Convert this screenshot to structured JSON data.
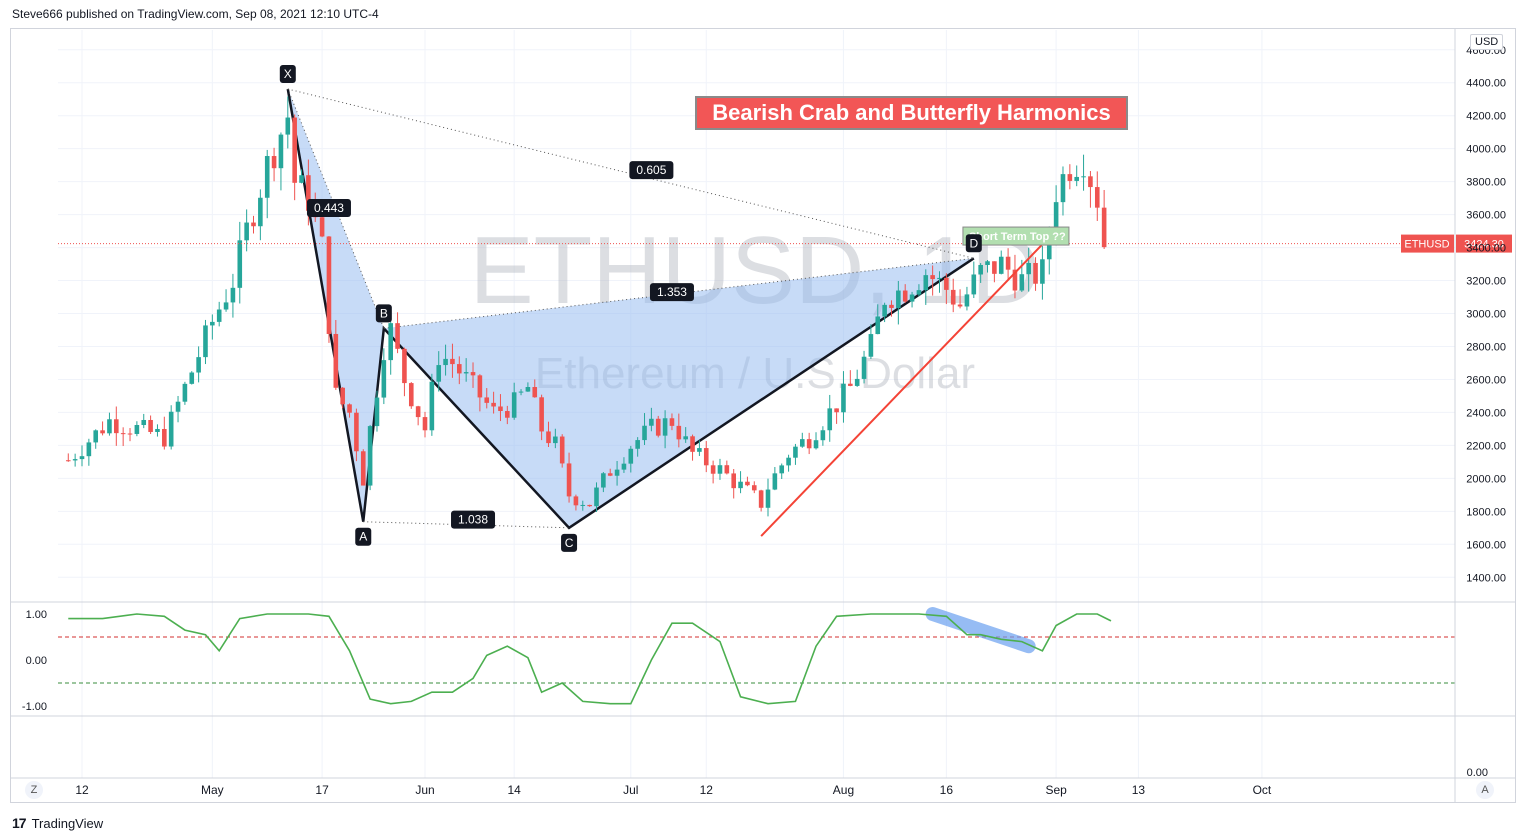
{
  "header": {
    "text": "Steve666 published on TradingView.com, Sep 08, 2021 12:10 UTC-4"
  },
  "footer": {
    "logo": "17",
    "brand": "TradingView"
  },
  "annotation_title": "Bearish Crab and Butterfly Harmonics",
  "currency_badge": "USD",
  "buttons": {
    "left": "Z",
    "right": "A"
  },
  "watermark": {
    "symbol": "ETHUSD, 1D",
    "name": "Ethereum / U.S. Dollar"
  },
  "colors": {
    "up": "#26a69a",
    "down": "#ef5350",
    "pattern_fill": "#90b8f0",
    "oscillator": "#4caf50",
    "trend": "#f44336",
    "callout": "#b2dfb0"
  },
  "chart_data": {
    "type": "candlestick",
    "symbol": "ETHUSD",
    "interval": "1D",
    "y_price_ticks": [
      1400,
      1600,
      1800,
      2000,
      2200,
      2400,
      2600,
      2800,
      3000,
      3200,
      3400,
      3600,
      3800,
      4000,
      4200,
      4400,
      4600
    ],
    "ylim": [
      1250,
      4720
    ],
    "x_ticks": [
      {
        "label": "12",
        "date": "2021-04-12"
      },
      {
        "label": "May",
        "date": "2021-05-01"
      },
      {
        "label": "17",
        "date": "2021-05-17"
      },
      {
        "label": "Jun",
        "date": "2021-06-01"
      },
      {
        "label": "14",
        "date": "2021-06-14"
      },
      {
        "label": "Jul",
        "date": "2021-07-01"
      },
      {
        "label": "12",
        "date": "2021-07-12"
      },
      {
        "label": "Aug",
        "date": "2021-08-01"
      },
      {
        "label": "16",
        "date": "2021-08-16"
      },
      {
        "label": "Sep",
        "date": "2021-09-01"
      },
      {
        "label": "13",
        "date": "2021-09-13"
      },
      {
        "label": "Oct",
        "date": "2021-10-01"
      }
    ],
    "last_price": {
      "label": "ETHUSD",
      "value": "3424.30"
    },
    "price_path": [
      [
        "2021-04-10",
        2110
      ],
      [
        "2021-04-16",
        2350
      ],
      [
        "2021-04-20",
        2300
      ],
      [
        "2021-04-24",
        2250
      ],
      [
        "2021-04-28",
        2650
      ],
      [
        "2021-05-01",
        2950
      ],
      [
        "2021-05-04",
        3200
      ],
      [
        "2021-05-06",
        3500
      ],
      [
        "2021-05-09",
        3900
      ],
      [
        "2021-05-12",
        4200
      ],
      [
        "2021-05-13",
        3800
      ],
      [
        "2021-05-15",
        3700
      ],
      [
        "2021-05-17",
        3400
      ],
      [
        "2021-05-19",
        2500
      ],
      [
        "2021-05-21",
        2400
      ],
      [
        "2021-05-23",
        2000
      ],
      [
        "2021-05-24",
        2300
      ],
      [
        "2021-05-26",
        2800
      ],
      [
        "2021-05-27",
        2900
      ],
      [
        "2021-05-29",
        2600
      ],
      [
        "2021-06-01",
        2300
      ],
      [
        "2021-06-03",
        2750
      ],
      [
        "2021-06-05",
        2700
      ],
      [
        "2021-06-08",
        2550
      ],
      [
        "2021-06-11",
        2400
      ],
      [
        "2021-06-14",
        2450
      ],
      [
        "2021-06-16",
        2550
      ],
      [
        "2021-06-18",
        2300
      ],
      [
        "2021-06-20",
        2200
      ],
      [
        "2021-06-22",
        1900
      ],
      [
        "2021-06-25",
        1850
      ],
      [
        "2021-06-28",
        2050
      ],
      [
        "2021-07-01",
        2200
      ],
      [
        "2021-07-04",
        2300
      ],
      [
        "2021-07-07",
        2350
      ],
      [
        "2021-07-10",
        2150
      ],
      [
        "2021-07-14",
        2050
      ],
      [
        "2021-07-17",
        1950
      ],
      [
        "2021-07-20",
        1850
      ],
      [
        "2021-07-21",
        1950
      ],
      [
        "2021-07-24",
        2150
      ],
      [
        "2021-07-27",
        2250
      ],
      [
        "2021-07-30",
        2400
      ],
      [
        "2021-08-02",
        2550
      ],
      [
        "2021-08-05",
        2800
      ],
      [
        "2021-08-07",
        3100
      ],
      [
        "2021-08-10",
        3150
      ],
      [
        "2021-08-13",
        3250
      ],
      [
        "2021-08-16",
        3150
      ],
      [
        "2021-08-18",
        3050
      ],
      [
        "2021-08-21",
        3250
      ],
      [
        "2021-08-24",
        3300
      ],
      [
        "2021-08-27",
        3200
      ],
      [
        "2021-08-30",
        3250
      ],
      [
        "2021-09-01",
        3750
      ],
      [
        "2021-09-03",
        3900
      ],
      [
        "2021-09-05",
        3950
      ],
      [
        "2021-09-07",
        3700
      ],
      [
        "2021-09-08",
        3424
      ]
    ],
    "harmonic_points": [
      {
        "label": "X",
        "date": "2021-05-12",
        "price": 4362
      },
      {
        "label": "A",
        "date": "2021-05-23",
        "price": 1737
      },
      {
        "label": "B",
        "date": "2021-05-26",
        "price": 2910
      },
      {
        "label": "C",
        "date": "2021-06-22",
        "price": 1700
      },
      {
        "label": "D",
        "date": "2021-08-20",
        "price": 3335
      }
    ],
    "ratios": [
      {
        "label": "0.443",
        "date": "2021-05-18",
        "price": 3640
      },
      {
        "label": "0.605",
        "date": "2021-07-04",
        "price": 3870
      },
      {
        "label": "1.353",
        "date": "2021-07-07",
        "price": 3130
      },
      {
        "label": "1.038",
        "date": "2021-06-08",
        "price": 1750
      }
    ],
    "callout": {
      "text": "Short Term Top ??",
      "date": "2021-08-19",
      "price": 3470
    },
    "trendline": {
      "from": [
        "2021-07-20",
        1650
      ],
      "to": [
        "2021-08-30",
        3420
      ]
    },
    "oscillator": {
      "y_ticks": [
        1.0,
        0.0,
        -1.0
      ],
      "upper_level": 0.5,
      "lower_level": -0.5,
      "bottom_tick": "0.00",
      "values": [
        [
          "2021-04-10",
          0.9
        ],
        [
          "2021-04-15",
          0.9
        ],
        [
          "2021-04-20",
          1.0
        ],
        [
          "2021-04-24",
          0.95
        ],
        [
          "2021-04-27",
          0.65
        ],
        [
          "2021-04-30",
          0.55
        ],
        [
          "2021-05-02",
          0.2
        ],
        [
          "2021-05-05",
          0.9
        ],
        [
          "2021-05-09",
          1.0
        ],
        [
          "2021-05-15",
          1.0
        ],
        [
          "2021-05-18",
          0.95
        ],
        [
          "2021-05-21",
          0.2
        ],
        [
          "2021-05-24",
          -0.85
        ],
        [
          "2021-05-27",
          -0.95
        ],
        [
          "2021-05-30",
          -0.9
        ],
        [
          "2021-06-02",
          -0.7
        ],
        [
          "2021-06-05",
          -0.7
        ],
        [
          "2021-06-08",
          -0.4
        ],
        [
          "2021-06-10",
          0.1
        ],
        [
          "2021-06-13",
          0.3
        ],
        [
          "2021-06-16",
          0.05
        ],
        [
          "2021-06-18",
          -0.7
        ],
        [
          "2021-06-21",
          -0.5
        ],
        [
          "2021-06-24",
          -0.9
        ],
        [
          "2021-06-28",
          -0.95
        ],
        [
          "2021-07-01",
          -0.95
        ],
        [
          "2021-07-04",
          0.0
        ],
        [
          "2021-07-07",
          0.8
        ],
        [
          "2021-07-10",
          0.8
        ],
        [
          "2021-07-14",
          0.4
        ],
        [
          "2021-07-17",
          -0.8
        ],
        [
          "2021-07-21",
          -0.95
        ],
        [
          "2021-07-25",
          -0.9
        ],
        [
          "2021-07-28",
          0.3
        ],
        [
          "2021-07-31",
          0.95
        ],
        [
          "2021-08-05",
          1.0
        ],
        [
          "2021-08-12",
          1.0
        ],
        [
          "2021-08-16",
          0.95
        ],
        [
          "2021-08-19",
          0.55
        ],
        [
          "2021-08-21",
          0.55
        ],
        [
          "2021-08-24",
          0.45
        ],
        [
          "2021-08-27",
          0.4
        ],
        [
          "2021-08-30",
          0.2
        ],
        [
          "2021-09-01",
          0.75
        ],
        [
          "2021-09-04",
          1.0
        ],
        [
          "2021-09-07",
          1.0
        ],
        [
          "2021-09-09",
          0.85
        ]
      ]
    }
  }
}
